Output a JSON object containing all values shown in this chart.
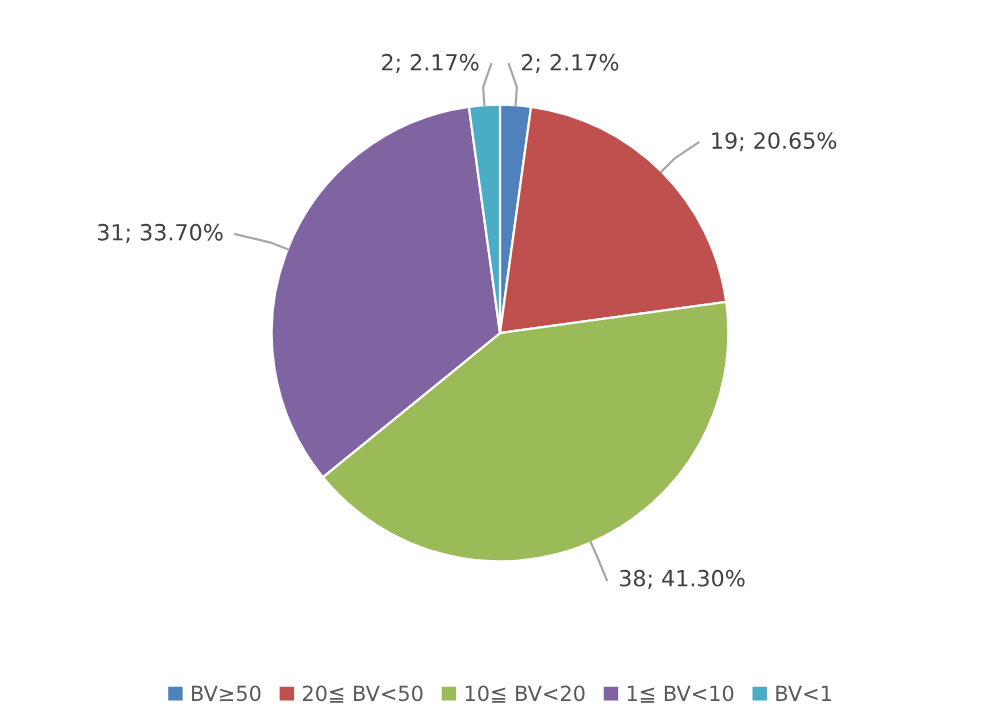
{
  "chart_data": {
    "type": "pie",
    "categories": [
      "BV≥50",
      "20≦ BV<50",
      "10≦ BV<20",
      "1≦ BV<10",
      "BV<1"
    ],
    "values": [
      2,
      19,
      38,
      31,
      2
    ],
    "value_labels": [
      "2; 2.17%",
      "19; 20.65%",
      "38; 41.30%",
      "31; 33.70%",
      "2; 2.17%"
    ],
    "colors": [
      "#4f81bd",
      "#c0504d",
      "#9bbb59",
      "#8064a2",
      "#4bacc6"
    ],
    "legend": "bottom"
  }
}
